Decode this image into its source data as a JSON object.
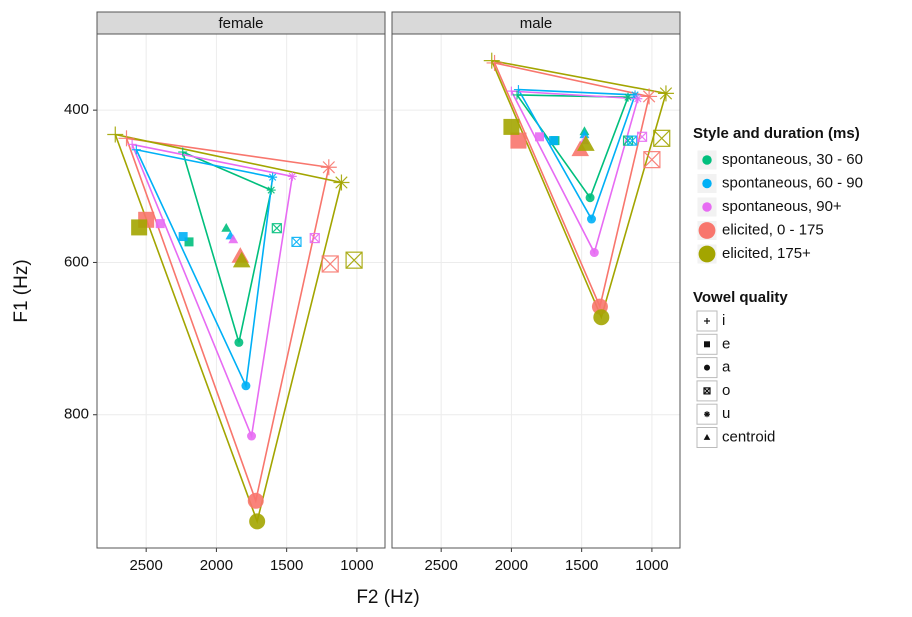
{
  "chart_data": {
    "type": "scatter",
    "x_label": "F2 (Hz)",
    "y_label": "F1 (Hz)",
    "xlim": [
      2850,
      800
    ],
    "ylim": [
      975,
      300
    ],
    "xticks": [
      2500,
      2000,
      1500,
      1000
    ],
    "yticks": [
      400,
      600,
      800
    ],
    "grid": true,
    "legend": "right",
    "legend_title": "Style and duration (ms)",
    "shape_legend_title": "Vowel quality",
    "shapes": [
      "i",
      "e",
      "a",
      "o",
      "u",
      "centroid"
    ],
    "series": [
      {
        "name": "spontaneous, 30 - 60",
        "color": "#00BF7D"
      },
      {
        "name": "spontaneous, 60 - 90",
        "color": "#00B0F6"
      },
      {
        "name": "spontaneous, 90+",
        "color": "#E76BF3"
      },
      {
        "name": "elicited, 0 - 175",
        "color": "#F8766D"
      },
      {
        "name": "elicited, 175+",
        "color": "#A3A500"
      }
    ],
    "facets": [
      {
        "name": "female",
        "series": [
          {
            "x": [
              2240,
              2195,
              1840,
              1570,
              1610,
              1930
            ],
            "values": [
              455,
              573,
              705,
              555,
              505,
              555
            ]
          },
          {
            "x": [
              2570,
              2237,
              1790,
              1430,
              1600,
              1900
            ],
            "values": [
              452,
              566,
              762,
              573,
              488,
              565
            ]
          },
          {
            "x": [
              2600,
              2400,
              1750,
              1300,
              1460,
              1880
            ],
            "values": [
              445,
              549,
              828,
              568,
              487,
              570
            ]
          },
          {
            "x": [
              2640,
              2500,
              1720,
              1190,
              1200,
              1830
            ],
            "values": [
              437,
              544,
              913,
              602,
              475,
              592
            ]
          },
          {
            "x": [
              2720,
              2550,
              1710,
              1020,
              1110,
              1820
            ],
            "values": [
              432,
              554,
              940,
              597,
              495,
              598
            ]
          }
        ]
      },
      {
        "name": "male",
        "series": [
          {
            "x": [
              1960,
              1690,
              1440,
              1170,
              1170,
              1480
            ],
            "values": [
              380,
              440,
              515,
              440,
              383,
              428
            ]
          },
          {
            "x": [
              1950,
              1700,
              1430,
              1140,
              1120,
              1480
            ],
            "values": [
              373,
              440,
              543,
              440,
              380,
              432
            ]
          },
          {
            "x": [
              2000,
              1800,
              1410,
              1070,
              1100,
              1480
            ],
            "values": [
              375,
              435,
              587,
              435,
              385,
              440
            ]
          },
          {
            "x": [
              2120,
              1950,
              1370,
              1000,
              1020,
              1510
            ],
            "values": [
              338,
              440,
              658,
              465,
              382,
              452
            ]
          },
          {
            "x": [
              2140,
              2000,
              1360,
              930,
              900,
              1470
            ],
            "values": [
              335,
              422,
              672,
              437,
              378,
              445
            ]
          }
        ]
      }
    ]
  }
}
